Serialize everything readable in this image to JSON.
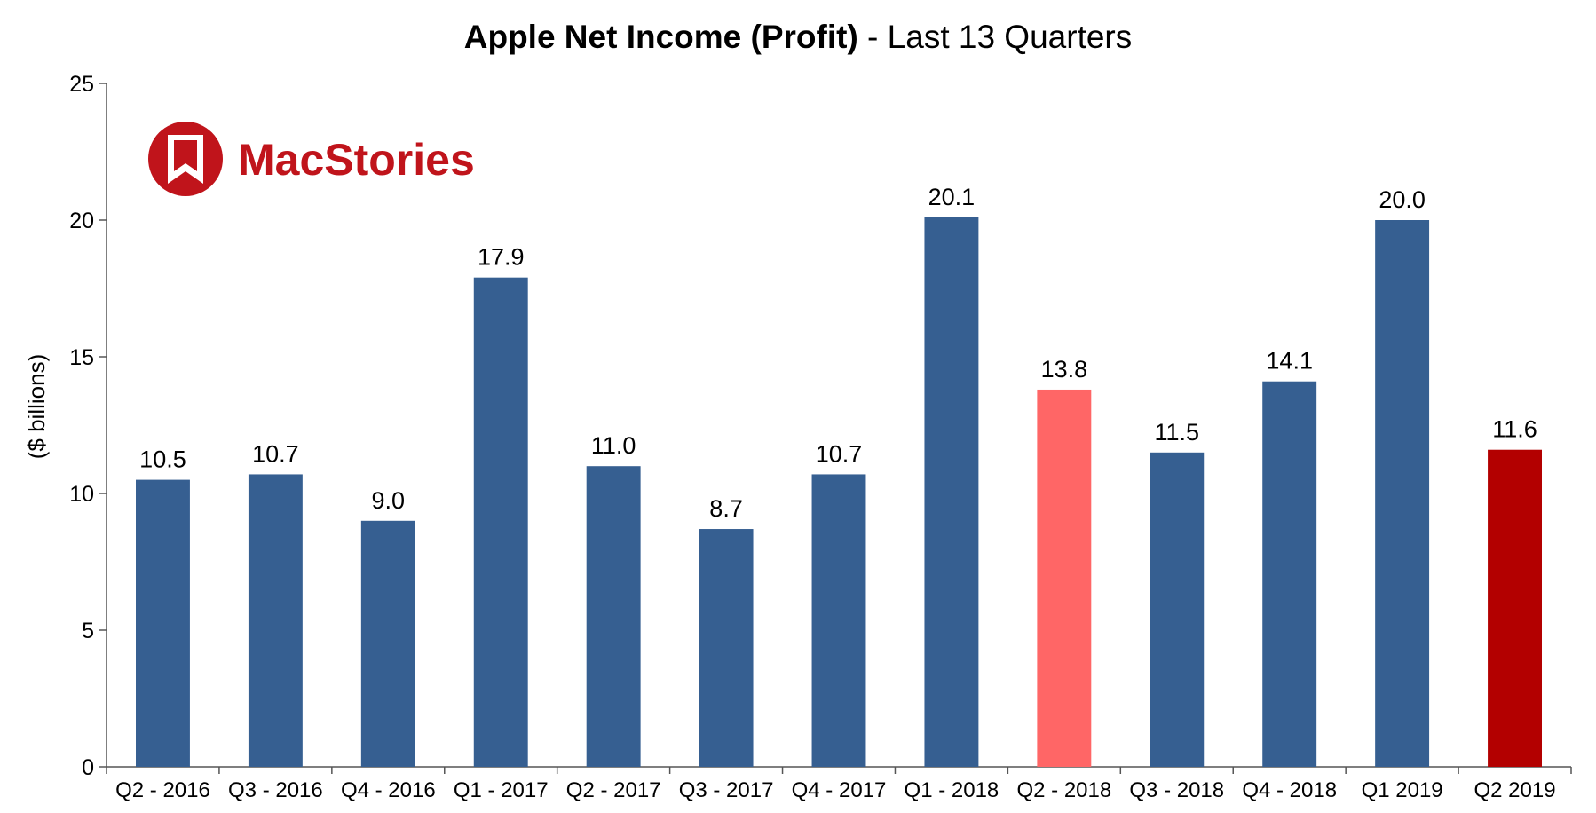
{
  "chart_data": {
    "type": "bar",
    "title_bold": "Apple Net Income (Profit)",
    "title_rest": " - Last 13 Quarters",
    "ylabel": "($ billions)",
    "xlabel": "",
    "ylim": [
      0,
      25
    ],
    "yticks": [
      "0",
      "5",
      "10",
      "15",
      "20",
      "25"
    ],
    "grid": false,
    "legend": "none",
    "categories": [
      "Q2 - 2016",
      "Q3 - 2016",
      "Q4 - 2016",
      "Q1 - 2017",
      "Q2 - 2017",
      "Q3 - 2017",
      "Q4 - 2017",
      "Q1 - 2018",
      "Q2 - 2018",
      "Q3 - 2018",
      "Q4 - 2018",
      "Q1 2019",
      "Q2 2019"
    ],
    "values": [
      10.5,
      10.7,
      9.0,
      17.9,
      11.0,
      8.7,
      10.7,
      20.1,
      13.8,
      11.5,
      14.1,
      20.0,
      11.6
    ],
    "labels": [
      "10.5",
      "10.7",
      "9.0",
      "17.9",
      "11.0",
      "8.7",
      "10.7",
      "20.1",
      "13.8",
      "11.5",
      "14.1",
      "20.0",
      "11.6"
    ],
    "colors": [
      "#365f91",
      "#365f91",
      "#365f91",
      "#365f91",
      "#365f91",
      "#365f91",
      "#365f91",
      "#365f91",
      "#ff6666",
      "#365f91",
      "#365f91",
      "#365f91",
      "#b30000"
    ]
  },
  "logo": {
    "text": "MacStories",
    "color": "#c0141b",
    "icon": "bookmark-icon"
  }
}
